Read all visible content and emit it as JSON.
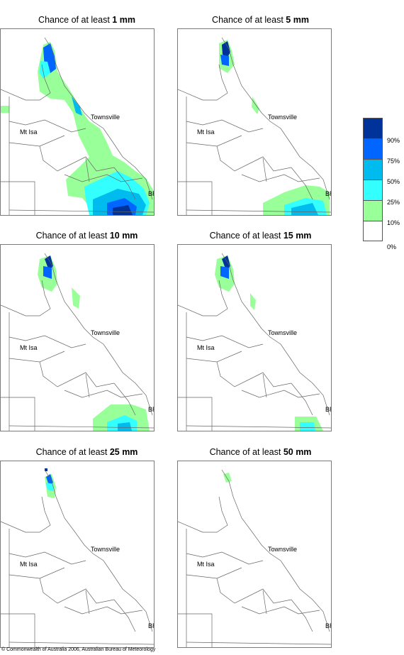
{
  "legend": {
    "colors": [
      "#003399",
      "#0066ff",
      "#00bbee",
      "#33ffff",
      "#99ff99",
      "#ffffff"
    ],
    "labels": [
      "90%",
      "75%",
      "50%",
      "25%",
      "10%",
      "0%"
    ]
  },
  "places": {
    "townsville": "Townsville",
    "mt_isa": "Mt Isa",
    "brisbane": "BRIS"
  },
  "panels": [
    {
      "prefix": "Chance of at least ",
      "amount": "1 mm"
    },
    {
      "prefix": "Chance of at least ",
      "amount": "5 mm"
    },
    {
      "prefix": "Chance of at least ",
      "amount": "10 mm"
    },
    {
      "prefix": "Chance of at least ",
      "amount": "15 mm"
    },
    {
      "prefix": "Chance of at least ",
      "amount": "25 mm"
    },
    {
      "prefix": "Chance of at least ",
      "amount": "50 mm"
    }
  ],
  "copyright": "© Commonwealth of Australia 2006, Australian Bureau of Meteorology"
}
